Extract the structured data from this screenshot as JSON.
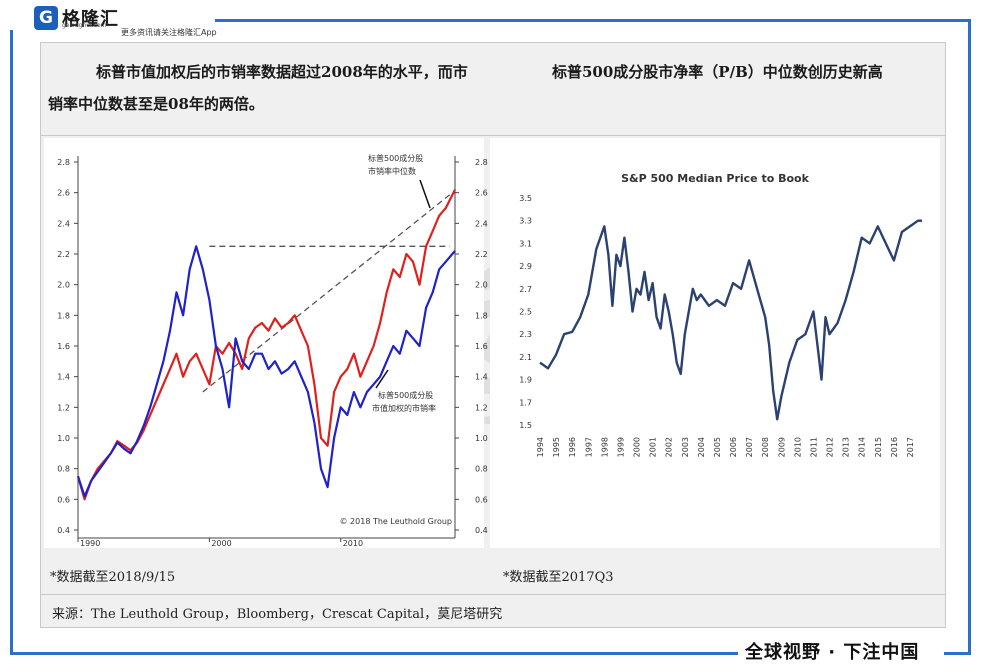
{
  "brand": {
    "logo_letter": "G",
    "name": "格隆汇",
    "url": "gelonghui.com",
    "tagline": "更多资讯请关注格隆汇App"
  },
  "header": {
    "left_text": "标普市值加权后的市销率数据超过2008年的水平，而市销率中位数甚至是08年的两倍。",
    "right_text": "标普500成分股市净率（P/B）中位数创历史新高"
  },
  "notes": {
    "left": "*数据截至2018/9/15",
    "right": "*数据截至2017Q3"
  },
  "source": "来源：The Leuthold Group，Bloomberg，Crescat Capital，莫尼塔研究",
  "slogan": "全球视野 · 下注中国",
  "watermark": {
    "text": "格隆汇",
    "url": "www.gelonghui.com"
  },
  "colors": {
    "frame_blue": "#2a6fc9",
    "series_red": "#e0201c",
    "series_blue": "#1f22c8",
    "series_navy": "#2b4170",
    "dashed": "#555555"
  },
  "chart_data": [
    {
      "type": "line",
      "title": "",
      "xlabel": "",
      "ylabel": "",
      "x_ticks": [
        "1990",
        "2000",
        "2010"
      ],
      "y_ticks": [
        "0.4",
        "0.6",
        "0.8",
        "1.0",
        "1.2",
        "1.4",
        "1.6",
        "1.8",
        "2.0",
        "2.2",
        "2.4",
        "2.6",
        "2.8"
      ],
      "ylim": [
        0.4,
        2.8
      ],
      "xlim": [
        1990,
        2018.7
      ],
      "series": [
        {
          "name": "标普500成分股市销率中位数",
          "color": "#e0201c",
          "x": [
            1990,
            1990.5,
            1991,
            1991.5,
            1992,
            1992.5,
            1993,
            1993.5,
            1994,
            1994.5,
            1995,
            1995.5,
            1996,
            1996.5,
            1997,
            1997.5,
            1998,
            1998.5,
            1999,
            1999.5,
            2000,
            2000.5,
            2001,
            2001.5,
            2002,
            2002.5,
            2003,
            2003.5,
            2004,
            2004.5,
            2005,
            2005.5,
            2006,
            2006.5,
            2007,
            2007.5,
            2008,
            2008.5,
            2009,
            2009.5,
            2010,
            2010.5,
            2011,
            2011.5,
            2012,
            2012.5,
            2013,
            2013.5,
            2014,
            2014.5,
            2015,
            2015.5,
            2016,
            2016.5,
            2017,
            2017.5,
            2018,
            2018.7
          ],
          "values": [
            0.75,
            0.6,
            0.72,
            0.8,
            0.85,
            0.9,
            0.98,
            0.95,
            0.92,
            0.97,
            1.05,
            1.15,
            1.25,
            1.35,
            1.45,
            1.55,
            1.4,
            1.5,
            1.55,
            1.45,
            1.35,
            1.6,
            1.55,
            1.62,
            1.55,
            1.45,
            1.65,
            1.72,
            1.75,
            1.7,
            1.78,
            1.72,
            1.75,
            1.8,
            1.7,
            1.6,
            1.35,
            1.0,
            0.95,
            1.3,
            1.4,
            1.45,
            1.55,
            1.4,
            1.5,
            1.6,
            1.75,
            1.95,
            2.1,
            2.05,
            2.2,
            2.15,
            2.0,
            2.25,
            2.35,
            2.45,
            2.5,
            2.62
          ]
        },
        {
          "name": "标普500成分股市值加权的市销率",
          "color": "#1f22c8",
          "x": [
            1990,
            1990.5,
            1991,
            1991.5,
            1992,
            1992.5,
            1993,
            1993.5,
            1994,
            1994.5,
            1995,
            1995.5,
            1996,
            1996.5,
            1997,
            1997.5,
            1998,
            1998.5,
            1999,
            1999.5,
            2000,
            2000.5,
            2001,
            2001.5,
            2002,
            2002.5,
            2003,
            2003.5,
            2004,
            2004.5,
            2005,
            2005.5,
            2006,
            2006.5,
            2007,
            2007.5,
            2008,
            2008.5,
            2009,
            2009.5,
            2010,
            2010.5,
            2011,
            2011.5,
            2012,
            2012.5,
            2013,
            2013.5,
            2014,
            2014.5,
            2015,
            2015.5,
            2016,
            2016.5,
            2017,
            2017.5,
            2018,
            2018.7
          ],
          "values": [
            0.75,
            0.62,
            0.72,
            0.78,
            0.84,
            0.9,
            0.97,
            0.93,
            0.9,
            0.98,
            1.08,
            1.2,
            1.35,
            1.5,
            1.7,
            1.95,
            1.8,
            2.1,
            2.25,
            2.1,
            1.9,
            1.6,
            1.45,
            1.2,
            1.65,
            1.5,
            1.45,
            1.55,
            1.55,
            1.45,
            1.5,
            1.42,
            1.45,
            1.5,
            1.4,
            1.3,
            1.1,
            0.8,
            0.68,
            1.0,
            1.2,
            1.15,
            1.3,
            1.2,
            1.3,
            1.35,
            1.4,
            1.5,
            1.6,
            1.55,
            1.7,
            1.65,
            1.6,
            1.85,
            1.95,
            2.1,
            2.15,
            2.22
          ]
        }
      ],
      "annotations": [
        {
          "text": "标普500成分股",
          "text2": "市销率中位数"
        },
        {
          "text": "标普500成分股",
          "text2": "市值加权的市销率"
        },
        {
          "text": "© 2018 The Leuthold Group"
        }
      ],
      "grid": false,
      "legend": "none"
    },
    {
      "type": "line",
      "title": "S&P 500 Median Price to Book",
      "xlabel": "",
      "ylabel": "",
      "x_ticks": [
        "1994",
        "1995",
        "1996",
        "1997",
        "1998",
        "1999",
        "2000",
        "2001",
        "2002",
        "2003",
        "2004",
        "2005",
        "2006",
        "2007",
        "2008",
        "2009",
        "2010",
        "2011",
        "2012",
        "2013",
        "2014",
        "2015",
        "2016",
        "2017"
      ],
      "y_ticks": [
        "1.5",
        "1.7",
        "1.9",
        "2.1",
        "2.3",
        "2.5",
        "2.7",
        "2.9",
        "3.1",
        "3.3",
        "3.5"
      ],
      "ylim": [
        1.5,
        3.5
      ],
      "xlim": [
        1994,
        2017.75
      ],
      "series": [
        {
          "name": "",
          "color": "#2b4170",
          "x": [
            1994,
            1994.5,
            1995,
            1995.5,
            1996,
            1996.5,
            1997,
            1997.5,
            1998,
            1998.25,
            1998.5,
            1998.75,
            1999,
            1999.25,
            1999.5,
            1999.75,
            2000,
            2000.25,
            2000.5,
            2000.75,
            2001,
            2001.25,
            2001.5,
            2001.75,
            2002,
            2002.25,
            2002.5,
            2002.75,
            2003,
            2003.25,
            2003.5,
            2003.75,
            2004,
            2004.5,
            2005,
            2005.5,
            2006,
            2006.5,
            2007,
            2007.5,
            2008,
            2008.25,
            2008.5,
            2008.75,
            2009,
            2009.5,
            2010,
            2010.5,
            2011,
            2011.25,
            2011.5,
            2011.75,
            2012,
            2012.5,
            2013,
            2013.5,
            2014,
            2014.5,
            2015,
            2015.5,
            2016,
            2016.5,
            2017,
            2017.5,
            2017.75
          ],
          "values": [
            2.05,
            2.0,
            2.12,
            2.3,
            2.32,
            2.45,
            2.65,
            3.05,
            3.25,
            3.0,
            2.55,
            3.0,
            2.9,
            3.15,
            2.85,
            2.5,
            2.7,
            2.65,
            2.85,
            2.6,
            2.75,
            2.45,
            2.35,
            2.65,
            2.5,
            2.3,
            2.05,
            1.95,
            2.3,
            2.5,
            2.7,
            2.6,
            2.65,
            2.55,
            2.6,
            2.55,
            2.75,
            2.7,
            2.95,
            2.7,
            2.45,
            2.2,
            1.8,
            1.55,
            1.75,
            2.05,
            2.25,
            2.3,
            2.5,
            2.2,
            1.9,
            2.45,
            2.3,
            2.4,
            2.6,
            2.85,
            3.15,
            3.1,
            3.25,
            3.1,
            2.95,
            3.2,
            3.25,
            3.3,
            3.3
          ]
        }
      ],
      "grid": false,
      "legend": "none"
    }
  ]
}
